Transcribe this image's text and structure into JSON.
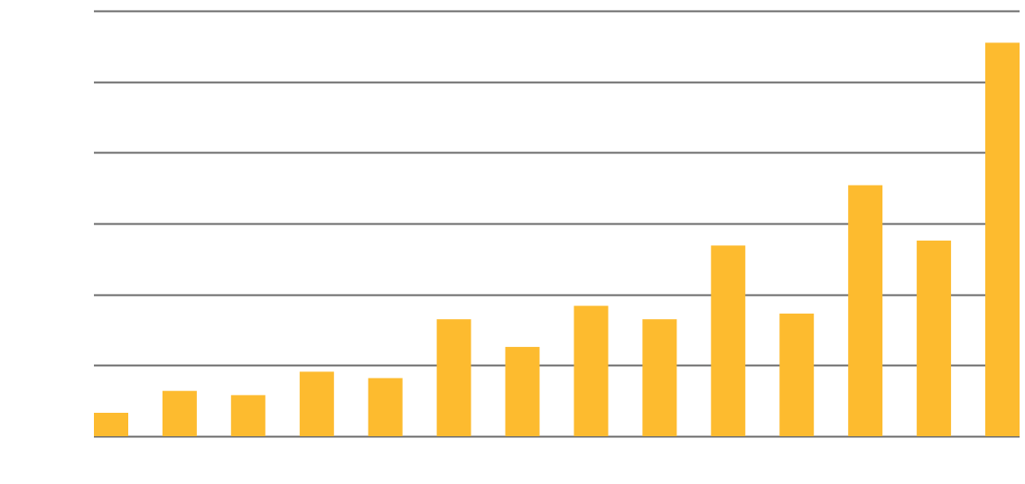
{
  "chart_data": {
    "type": "bar",
    "title": "",
    "xlabel": "",
    "ylabel": "",
    "categories": [
      "",
      "",
      "",
      "",
      "",
      "",
      "",
      "",
      "",
      "",
      "",
      "",
      "",
      ""
    ],
    "series": [
      {
        "values": [
          0.33,
          0.64,
          0.58,
          0.91,
          0.82,
          1.65,
          1.26,
          1.84,
          1.65,
          2.69,
          1.73,
          3.54,
          2.76,
          5.55
        ]
      }
    ],
    "ylim": [
      0,
      6
    ],
    "yticks": [
      0,
      1,
      2,
      3,
      4,
      5,
      6
    ],
    "grid": true,
    "legend": "none",
    "colors": {
      "bar": "#FDBB2F",
      "grid": "#6b6b6b"
    }
  }
}
